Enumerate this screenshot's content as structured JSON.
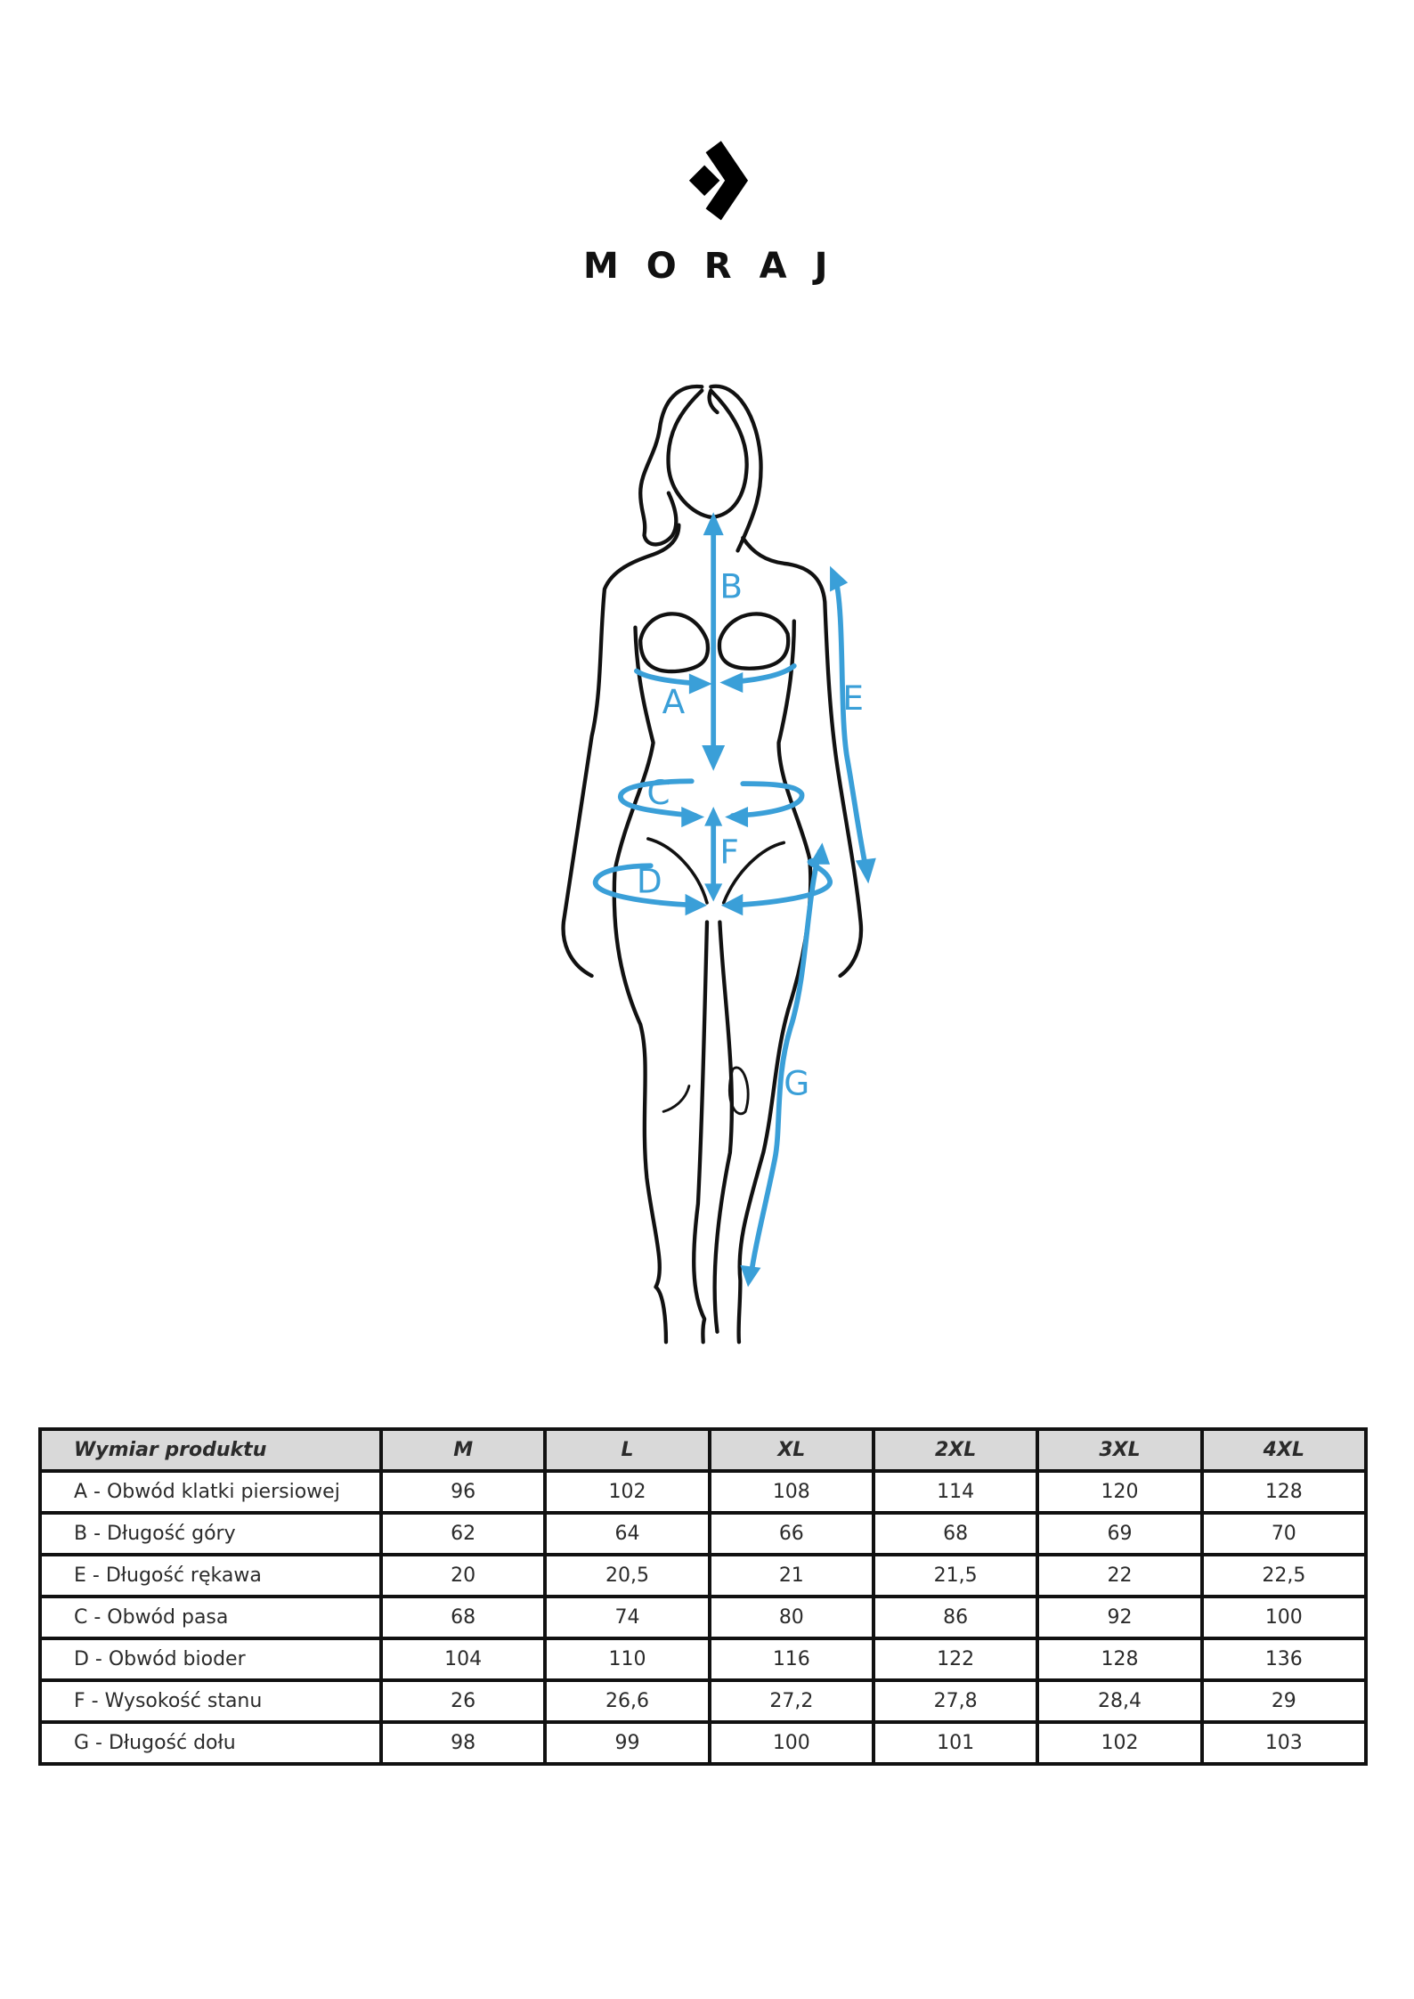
{
  "brand": {
    "name": "MORAJ",
    "logo_icon": "diamond-chevron-logo"
  },
  "figure": {
    "labels": [
      "A",
      "B",
      "C",
      "D",
      "E",
      "F",
      "G"
    ],
    "arrow_color": "#3a9fd8"
  },
  "table": {
    "headers": [
      "Wymiar produktu",
      "M",
      "L",
      "XL",
      "2XL",
      "3XL",
      "4XL"
    ],
    "rows": [
      [
        "A - Obwód klatki piersiowej",
        "96",
        "102",
        "108",
        "114",
        "120",
        "128"
      ],
      [
        "B - Długość góry",
        "62",
        "64",
        "66",
        "68",
        "69",
        "70"
      ],
      [
        "E - Długość rękawa",
        "20",
        "20,5",
        "21",
        "21,5",
        "22",
        "22,5"
      ],
      [
        "C - Obwód pasa",
        "68",
        "74",
        "80",
        "86",
        "92",
        "100"
      ],
      [
        "D - Obwód bioder",
        "104",
        "110",
        "116",
        "122",
        "128",
        "136"
      ],
      [
        "F - Wysokość stanu",
        "26",
        "26,6",
        "27,2",
        "27,8",
        "28,4",
        "29"
      ],
      [
        "G - Długość dołu",
        "98",
        "99",
        "100",
        "101",
        "102",
        "103"
      ]
    ],
    "header_bg": "#d9d9d9"
  }
}
